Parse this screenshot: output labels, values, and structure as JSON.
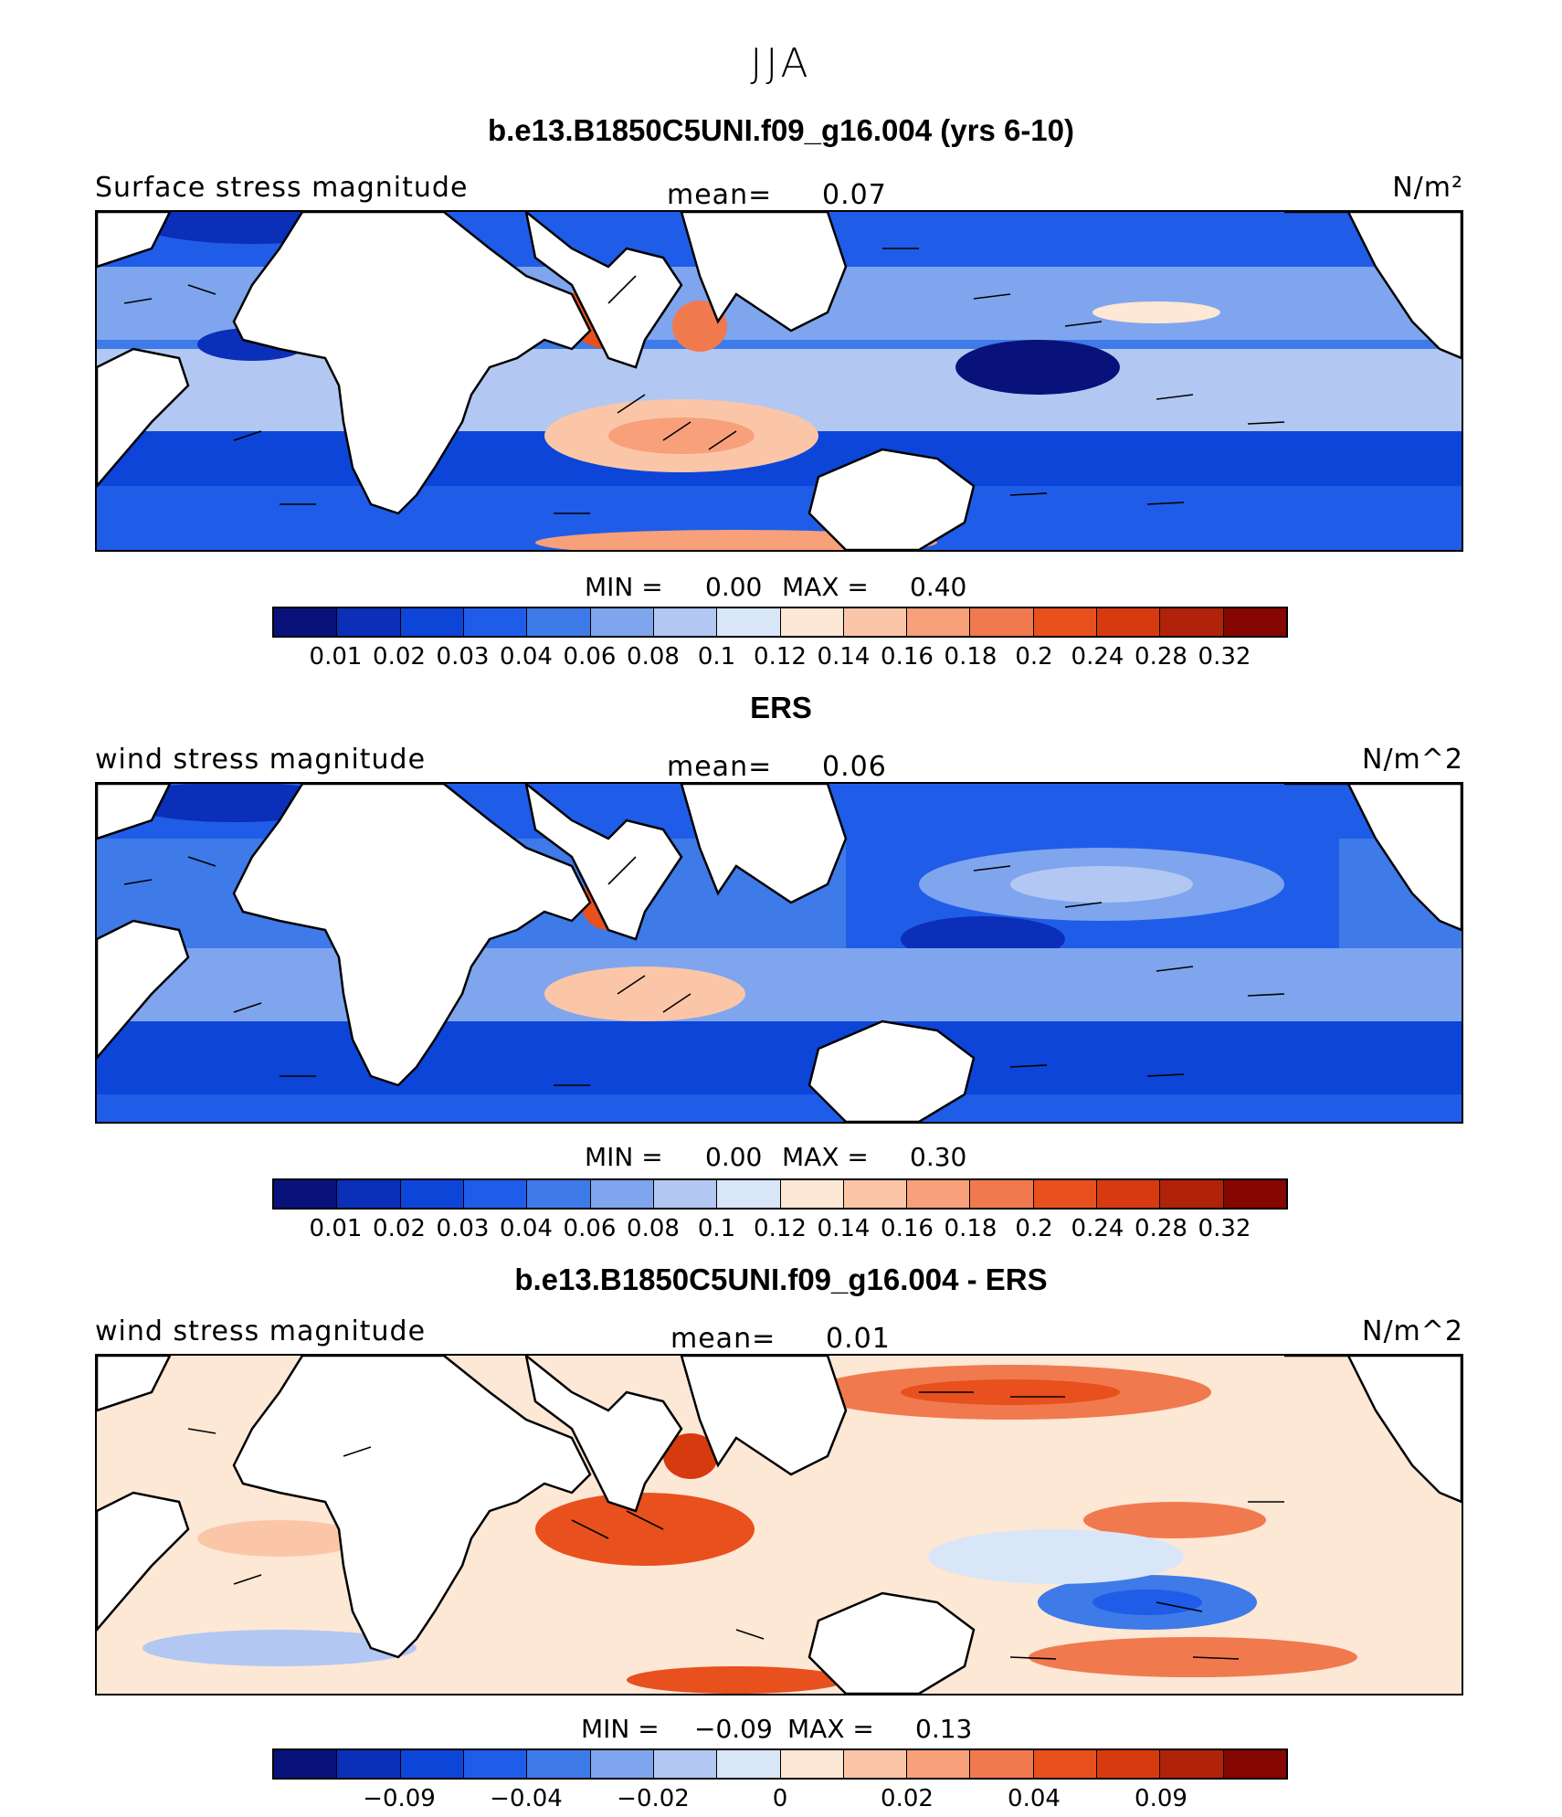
{
  "season": "JJA",
  "colors": {
    "palette": [
      "#08127a",
      "#0b2fb8",
      "#0d45d8",
      "#1f5de8",
      "#3e7ae8",
      "#7fa5ee",
      "#b2c8f2",
      "#d8e6f8",
      "#fde7d5",
      "#fbc6a8",
      "#f7a07a",
      "#f07a4e",
      "#e8501e",
      "#d83a10",
      "#b0220a",
      "#860602"
    ],
    "land": "#ffffff",
    "coast": "#000000"
  },
  "panels": [
    {
      "title": "b.e13.B1850C5UNI.f09_g16.004 (yrs 6-10)",
      "field_label": "Surface stress magnitude",
      "mean_label": "mean=",
      "mean_value": "0.07",
      "units": "N/m²",
      "min_label": "MIN =",
      "min_value": "0.00",
      "max_label": "MAX =",
      "max_value": "0.40",
      "colorbar_ticks": [
        "0.01",
        "0.02",
        "0.03",
        "0.04",
        "0.06",
        "0.08",
        "0.1",
        "0.12",
        "0.14",
        "0.16",
        "0.18",
        "0.2",
        "0.24",
        "0.28",
        "0.32"
      ]
    },
    {
      "title": "ERS",
      "field_label": "wind stress magnitude",
      "mean_label": "mean=",
      "mean_value": "0.06",
      "units": "N/m^2",
      "min_label": "MIN =",
      "min_value": "0.00",
      "max_label": "MAX =",
      "max_value": "0.30",
      "colorbar_ticks": [
        "0.01",
        "0.02",
        "0.03",
        "0.04",
        "0.06",
        "0.08",
        "0.1",
        "0.12",
        "0.14",
        "0.16",
        "0.18",
        "0.2",
        "0.24",
        "0.28",
        "0.32"
      ]
    },
    {
      "title": "b.e13.B1850C5UNI.f09_g16.004 - ERS",
      "field_label": "wind stress magnitude",
      "mean_label": "mean=",
      "mean_value": "0.01",
      "units": "N/m^2",
      "min_label": "MIN =",
      "min_value": "−0.09",
      "max_label": "MAX =",
      "max_value": "0.13",
      "colorbar_ticks": [
        "−0.09",
        "−0.04",
        "−0.02",
        "0",
        "0.02",
        "0.04",
        "0.09"
      ]
    }
  ]
}
